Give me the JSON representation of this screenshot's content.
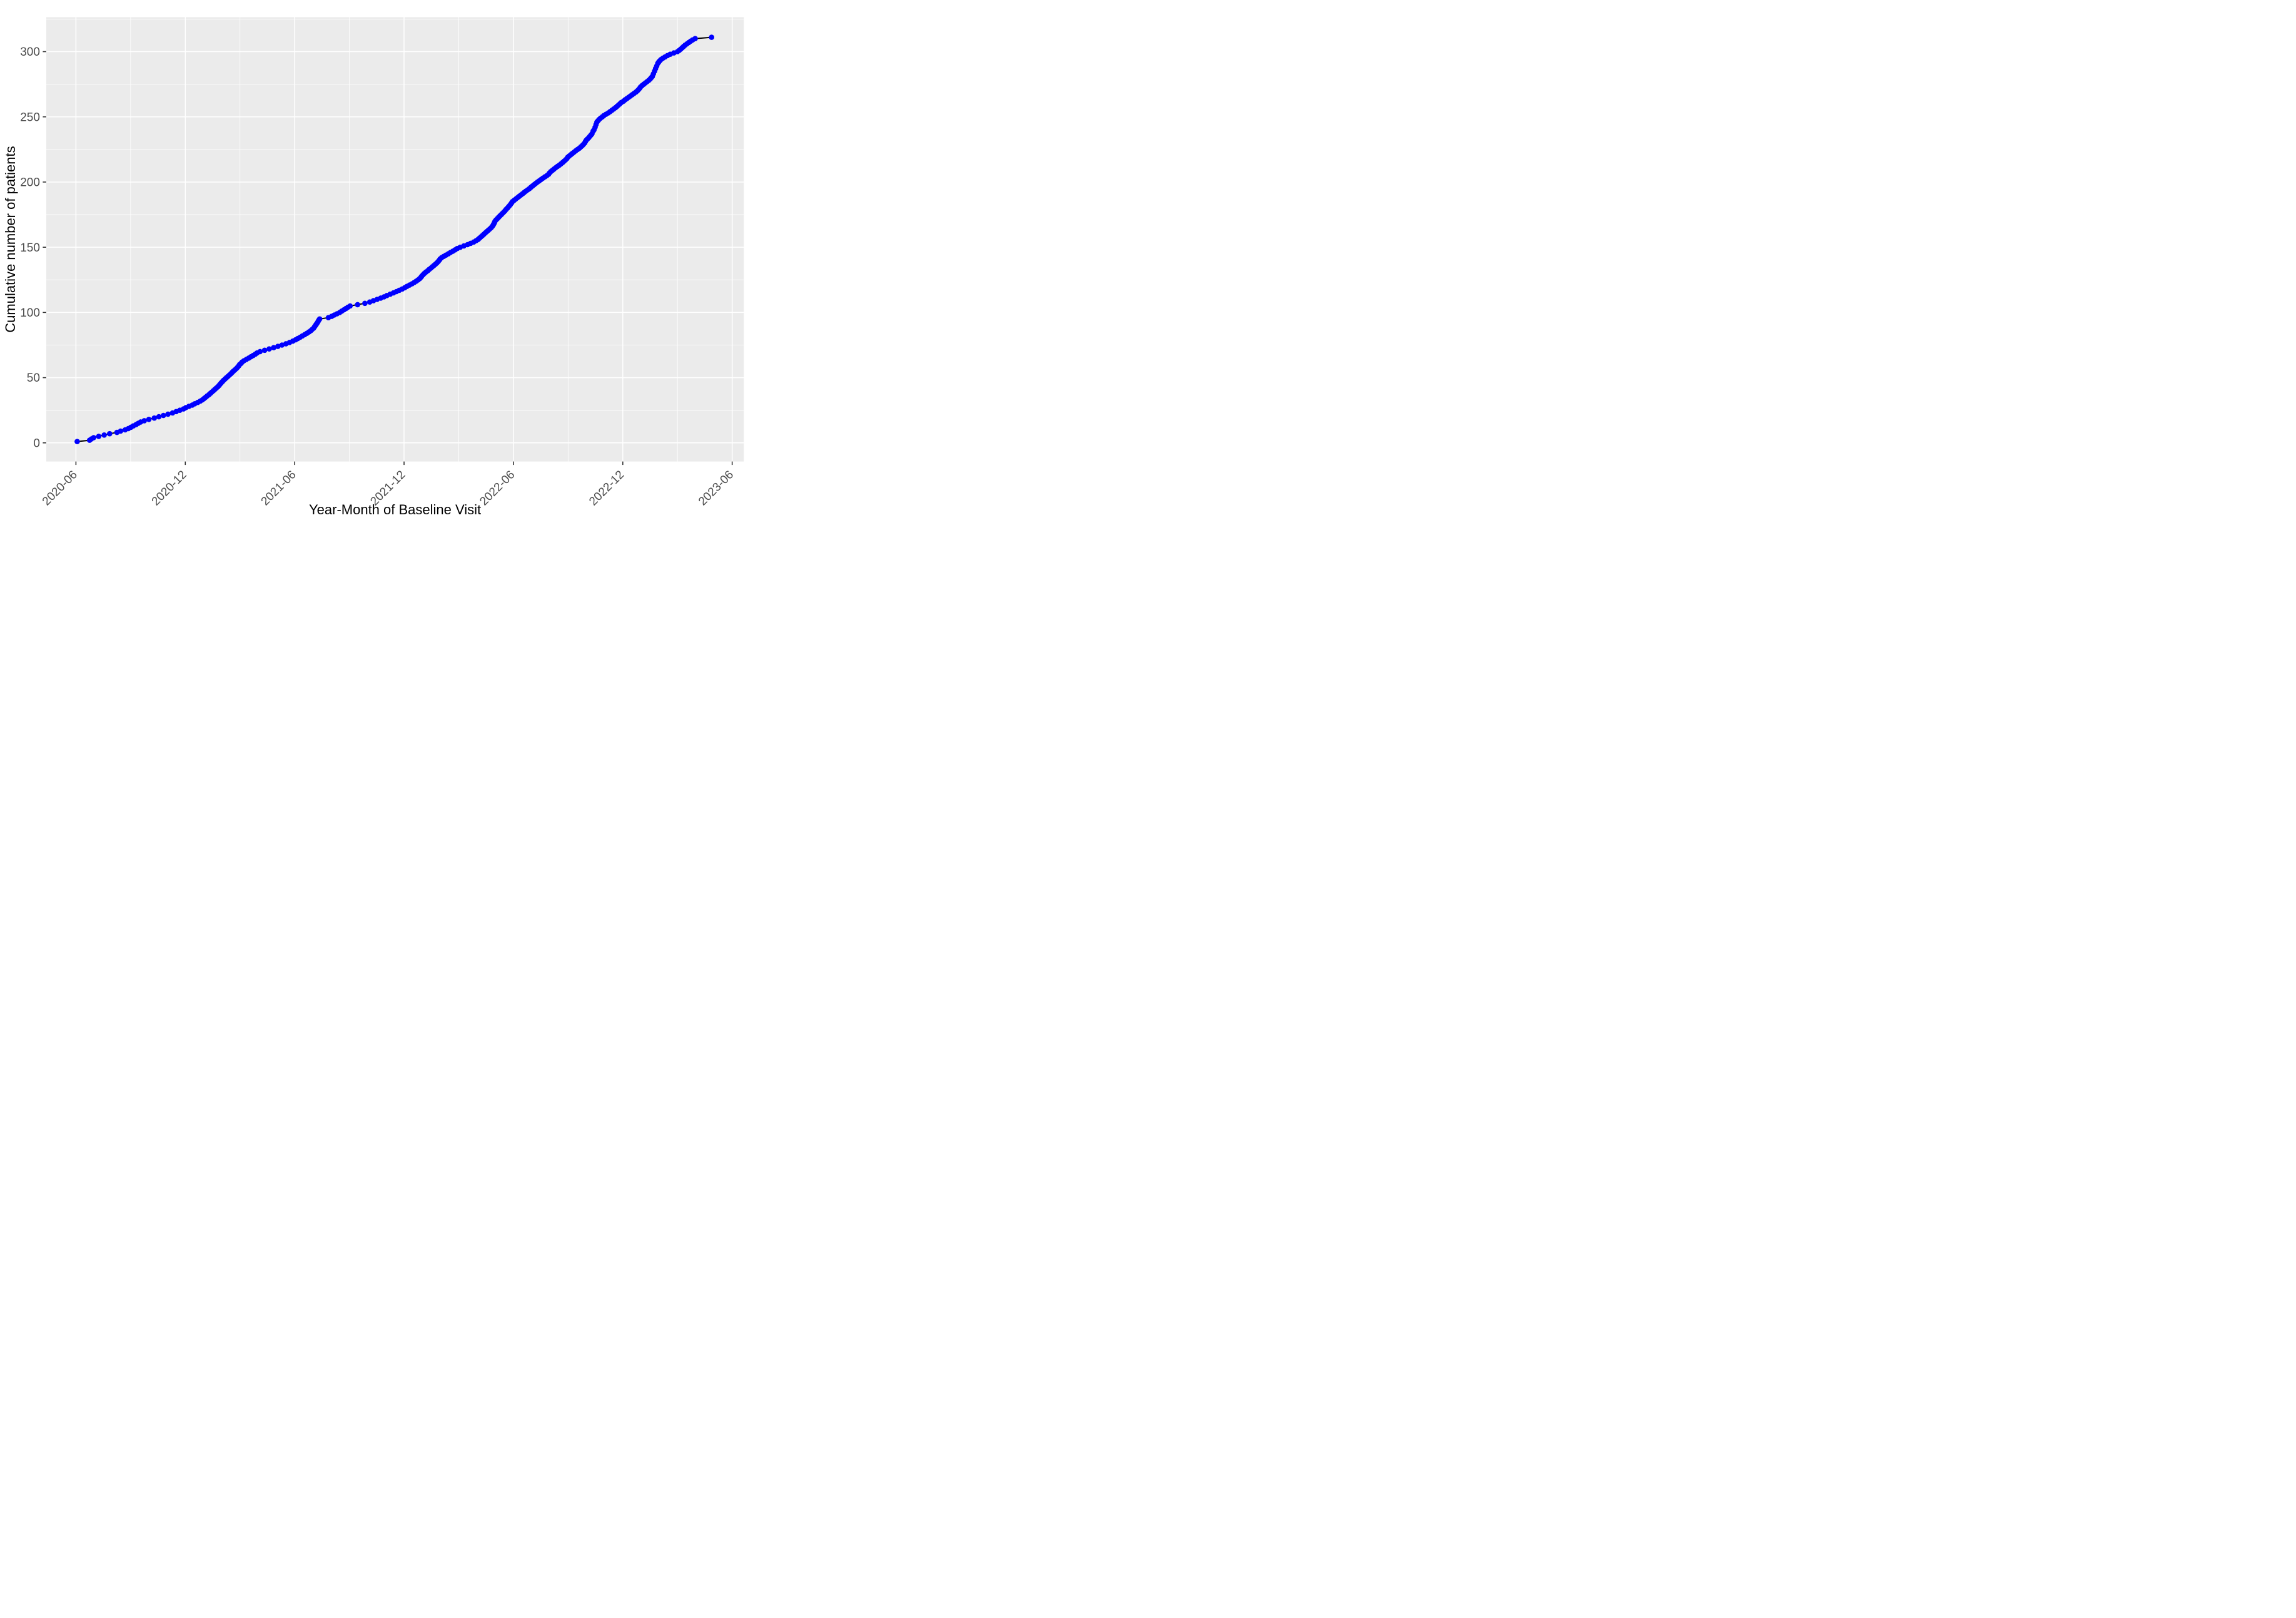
{
  "chart_data": {
    "type": "line",
    "title": "",
    "xlabel": "Year-Month of Baseline Visit",
    "ylabel": "Cumulative number of patients",
    "x_unit": "months since 2020-06-01",
    "x_tick_labels": [
      "2020-06",
      "2020-12",
      "2021-06",
      "2021-12",
      "2022-06",
      "2022-12",
      "2023-06"
    ],
    "x_tick_positions": [
      0,
      6,
      12,
      18,
      24,
      30,
      36
    ],
    "x_minor_positions": [
      3,
      9,
      15,
      21,
      27,
      33
    ],
    "y_tick_labels": [
      "0",
      "50",
      "100",
      "150",
      "200",
      "250",
      "300"
    ],
    "y_tick_positions": [
      0,
      50,
      100,
      150,
      200,
      250,
      300
    ],
    "y_minor_positions": [
      25,
      75,
      125,
      175,
      225,
      275,
      325
    ],
    "xlim": [
      -1.63,
      36.64
    ],
    "ylim": [
      -14.3,
      326.4
    ],
    "grid": true,
    "legend": "none",
    "point_color": "#0000FF",
    "line_color": "#000000",
    "panel_color": "#EBEBEB",
    "grid_color": "#FFFFFF",
    "tick_color": "#333333",
    "tick_label_color": "#4D4D4D",
    "axis_title_color": "#000000",
    "final_count": 311,
    "series": [
      {
        "name": "Cumulative number of patients",
        "points": [
          [
            0.07,
            1
          ],
          [
            0.75,
            2
          ],
          [
            0.85,
            3
          ],
          [
            0.97,
            4
          ],
          [
            1.25,
            5
          ],
          [
            1.55,
            6
          ],
          [
            1.85,
            7
          ],
          [
            2.25,
            8
          ],
          [
            2.45,
            9
          ],
          [
            2.7,
            10
          ],
          [
            2.88,
            11
          ],
          [
            3.02,
            12
          ],
          [
            3.15,
            13
          ],
          [
            3.3,
            14
          ],
          [
            3.42,
            15
          ],
          [
            3.55,
            16
          ],
          [
            3.75,
            17
          ],
          [
            4.0,
            18
          ],
          [
            4.3,
            19
          ],
          [
            4.55,
            20
          ],
          [
            4.8,
            21
          ],
          [
            5.05,
            22
          ],
          [
            5.3,
            23
          ],
          [
            5.5,
            24
          ],
          [
            5.7,
            25
          ],
          [
            5.9,
            26
          ],
          [
            6.03,
            27
          ],
          [
            6.2,
            28
          ],
          [
            6.38,
            29
          ],
          [
            6.52,
            30
          ],
          [
            6.68,
            31
          ],
          [
            6.82,
            32
          ],
          [
            6.94,
            33
          ],
          [
            7.03,
            34
          ],
          [
            7.12,
            35
          ],
          [
            7.2,
            36
          ],
          [
            7.3,
            37
          ],
          [
            7.38,
            38
          ],
          [
            7.46,
            39
          ],
          [
            7.54,
            40
          ],
          [
            7.62,
            41
          ],
          [
            7.7,
            42
          ],
          [
            7.78,
            43
          ],
          [
            7.85,
            44
          ],
          [
            7.91,
            45
          ],
          [
            7.97,
            46
          ],
          [
            8.04,
            47
          ],
          [
            8.1,
            48
          ],
          [
            8.18,
            49
          ],
          [
            8.26,
            50
          ],
          [
            8.34,
            51
          ],
          [
            8.42,
            52
          ],
          [
            8.5,
            53
          ],
          [
            8.57,
            54
          ],
          [
            8.64,
            55
          ],
          [
            8.72,
            56
          ],
          [
            8.8,
            57
          ],
          [
            8.87,
            58
          ],
          [
            8.93,
            59
          ],
          [
            8.98,
            60
          ],
          [
            9.06,
            61
          ],
          [
            9.12,
            62
          ],
          [
            9.22,
            63
          ],
          [
            9.35,
            64
          ],
          [
            9.48,
            65
          ],
          [
            9.6,
            66
          ],
          [
            9.72,
            67
          ],
          [
            9.84,
            68
          ],
          [
            9.94,
            69
          ],
          [
            10.1,
            70
          ],
          [
            10.35,
            71
          ],
          [
            10.6,
            72
          ],
          [
            10.85,
            73
          ],
          [
            11.08,
            74
          ],
          [
            11.3,
            75
          ],
          [
            11.52,
            76
          ],
          [
            11.72,
            77
          ],
          [
            11.9,
            78
          ],
          [
            12.05,
            79
          ],
          [
            12.17,
            80
          ],
          [
            12.3,
            81
          ],
          [
            12.42,
            82
          ],
          [
            12.55,
            83
          ],
          [
            12.67,
            84
          ],
          [
            12.78,
            85
          ],
          [
            12.88,
            86
          ],
          [
            12.96,
            87
          ],
          [
            13.04,
            88
          ],
          [
            13.09,
            89
          ],
          [
            13.14,
            90
          ],
          [
            13.19,
            91
          ],
          [
            13.24,
            92
          ],
          [
            13.28,
            93
          ],
          [
            13.32,
            94
          ],
          [
            13.37,
            95
          ],
          [
            13.85,
            96
          ],
          [
            14.03,
            97
          ],
          [
            14.17,
            98
          ],
          [
            14.32,
            99
          ],
          [
            14.47,
            100
          ],
          [
            14.58,
            101
          ],
          [
            14.7,
            102
          ],
          [
            14.81,
            103
          ],
          [
            14.92,
            104
          ],
          [
            15.04,
            105
          ],
          [
            15.45,
            106
          ],
          [
            15.85,
            107
          ],
          [
            16.12,
            108
          ],
          [
            16.32,
            109
          ],
          [
            16.52,
            110
          ],
          [
            16.72,
            111
          ],
          [
            16.9,
            112
          ],
          [
            17.06,
            113
          ],
          [
            17.24,
            114
          ],
          [
            17.42,
            115
          ],
          [
            17.58,
            116
          ],
          [
            17.74,
            117
          ],
          [
            17.9,
            118
          ],
          [
            18.04,
            119
          ],
          [
            18.16,
            120
          ],
          [
            18.3,
            121
          ],
          [
            18.44,
            122
          ],
          [
            18.56,
            123
          ],
          [
            18.67,
            124
          ],
          [
            18.77,
            125
          ],
          [
            18.86,
            126
          ],
          [
            18.93,
            127
          ],
          [
            18.98,
            128
          ],
          [
            19.05,
            129
          ],
          [
            19.12,
            130
          ],
          [
            19.2,
            131
          ],
          [
            19.3,
            132
          ],
          [
            19.38,
            133
          ],
          [
            19.47,
            134
          ],
          [
            19.55,
            135
          ],
          [
            19.64,
            136
          ],
          [
            19.72,
            137
          ],
          [
            19.8,
            138
          ],
          [
            19.87,
            139
          ],
          [
            19.93,
            140
          ],
          [
            19.98,
            141
          ],
          [
            20.06,
            142
          ],
          [
            20.18,
            143
          ],
          [
            20.3,
            144
          ],
          [
            20.43,
            145
          ],
          [
            20.55,
            146
          ],
          [
            20.68,
            147
          ],
          [
            20.8,
            148
          ],
          [
            20.92,
            149
          ],
          [
            21.08,
            150
          ],
          [
            21.28,
            151
          ],
          [
            21.48,
            152
          ],
          [
            21.65,
            153
          ],
          [
            21.82,
            154
          ],
          [
            21.95,
            155
          ],
          [
            22.06,
            156
          ],
          [
            22.14,
            157
          ],
          [
            22.22,
            158
          ],
          [
            22.3,
            159
          ],
          [
            22.38,
            160
          ],
          [
            22.46,
            161
          ],
          [
            22.54,
            162
          ],
          [
            22.62,
            163
          ],
          [
            22.7,
            164
          ],
          [
            22.78,
            165
          ],
          [
            22.84,
            166
          ],
          [
            22.89,
            167
          ],
          [
            22.93,
            168
          ],
          [
            22.96,
            169
          ],
          [
            22.99,
            170
          ],
          [
            23.05,
            171
          ],
          [
            23.12,
            172
          ],
          [
            23.19,
            173
          ],
          [
            23.26,
            174
          ],
          [
            23.33,
            175
          ],
          [
            23.4,
            176
          ],
          [
            23.47,
            177
          ],
          [
            23.54,
            178
          ],
          [
            23.6,
            179
          ],
          [
            23.67,
            180
          ],
          [
            23.73,
            181
          ],
          [
            23.79,
            182
          ],
          [
            23.85,
            183
          ],
          [
            23.9,
            184
          ],
          [
            23.95,
            185
          ],
          [
            24.04,
            186
          ],
          [
            24.13,
            187
          ],
          [
            24.22,
            188
          ],
          [
            24.31,
            189
          ],
          [
            24.4,
            190
          ],
          [
            24.5,
            191
          ],
          [
            24.59,
            192
          ],
          [
            24.68,
            193
          ],
          [
            24.78,
            194
          ],
          [
            24.88,
            195
          ],
          [
            24.96,
            196
          ],
          [
            25.05,
            197
          ],
          [
            25.14,
            198
          ],
          [
            25.23,
            199
          ],
          [
            25.32,
            200
          ],
          [
            25.42,
            201
          ],
          [
            25.52,
            202
          ],
          [
            25.62,
            203
          ],
          [
            25.73,
            204
          ],
          [
            25.84,
            205
          ],
          [
            25.93,
            206
          ],
          [
            25.98,
            207
          ],
          [
            26.05,
            208
          ],
          [
            26.14,
            209
          ],
          [
            26.23,
            210
          ],
          [
            26.32,
            211
          ],
          [
            26.42,
            212
          ],
          [
            26.52,
            213
          ],
          [
            26.61,
            214
          ],
          [
            26.7,
            215
          ],
          [
            26.78,
            216
          ],
          [
            26.86,
            217
          ],
          [
            26.93,
            218
          ],
          [
            26.98,
            219
          ],
          [
            27.06,
            220
          ],
          [
            27.15,
            221
          ],
          [
            27.24,
            222
          ],
          [
            27.33,
            223
          ],
          [
            27.42,
            224
          ],
          [
            27.52,
            225
          ],
          [
            27.62,
            226
          ],
          [
            27.7,
            227
          ],
          [
            27.78,
            228
          ],
          [
            27.85,
            229
          ],
          [
            27.91,
            230
          ],
          [
            27.95,
            231
          ],
          [
            27.99,
            232
          ],
          [
            28.06,
            233
          ],
          [
            28.13,
            234
          ],
          [
            28.19,
            235
          ],
          [
            28.25,
            236
          ],
          [
            28.31,
            237
          ],
          [
            28.37,
            239
          ],
          [
            28.42,
            240
          ],
          [
            28.48,
            242
          ],
          [
            28.53,
            244
          ],
          [
            28.58,
            246
          ],
          [
            28.64,
            247
          ],
          [
            28.7,
            248
          ],
          [
            28.78,
            249
          ],
          [
            28.88,
            250
          ],
          [
            28.96,
            251
          ],
          [
            29.08,
            252
          ],
          [
            29.2,
            253
          ],
          [
            29.3,
            254
          ],
          [
            29.4,
            255
          ],
          [
            29.5,
            256
          ],
          [
            29.6,
            257
          ],
          [
            29.68,
            258
          ],
          [
            29.76,
            259
          ],
          [
            29.84,
            260
          ],
          [
            29.92,
            261
          ],
          [
            30.04,
            262
          ],
          [
            30.12,
            263
          ],
          [
            30.22,
            264
          ],
          [
            30.32,
            265
          ],
          [
            30.42,
            266
          ],
          [
            30.52,
            267
          ],
          [
            30.62,
            268
          ],
          [
            30.72,
            269
          ],
          [
            30.8,
            270
          ],
          [
            30.87,
            271
          ],
          [
            30.93,
            272
          ],
          [
            30.98,
            273
          ],
          [
            31.06,
            274
          ],
          [
            31.15,
            275
          ],
          [
            31.24,
            276
          ],
          [
            31.33,
            277
          ],
          [
            31.42,
            278
          ],
          [
            31.5,
            279
          ],
          [
            31.56,
            280
          ],
          [
            31.62,
            281
          ],
          [
            31.68,
            283
          ],
          [
            31.74,
            285
          ],
          [
            31.8,
            287
          ],
          [
            31.86,
            289
          ],
          [
            31.92,
            291
          ],
          [
            31.97,
            292
          ],
          [
            32.03,
            293
          ],
          [
            32.1,
            294
          ],
          [
            32.2,
            295
          ],
          [
            32.32,
            296
          ],
          [
            32.45,
            297
          ],
          [
            32.6,
            298
          ],
          [
            32.8,
            299
          ],
          [
            33.0,
            300
          ],
          [
            33.1,
            301
          ],
          [
            33.18,
            302
          ],
          [
            33.26,
            303
          ],
          [
            33.34,
            304
          ],
          [
            33.42,
            305
          ],
          [
            33.52,
            306
          ],
          [
            33.62,
            307
          ],
          [
            33.72,
            308
          ],
          [
            33.83,
            309
          ],
          [
            33.97,
            310
          ],
          [
            34.87,
            311
          ]
        ]
      }
    ]
  }
}
